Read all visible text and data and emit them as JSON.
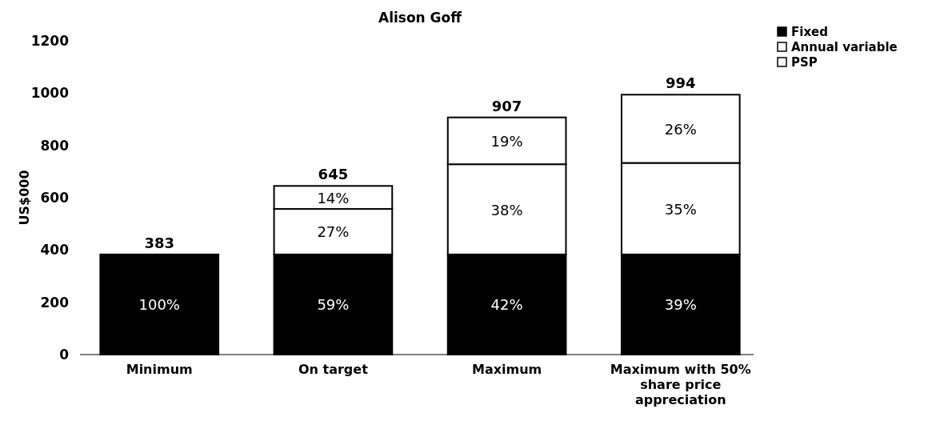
{
  "chart_data": {
    "type": "bar",
    "title": "Alison Goff",
    "ylabel": "US$000",
    "stacked": true,
    "categories": [
      "Minimum",
      "On target",
      "Maximum",
      "Maximum with 50% share price appreciation"
    ],
    "series": [
      {
        "name": "Fixed",
        "color": "#000000",
        "values": [
          383,
          383,
          383,
          383
        ]
      },
      {
        "name": "Annual variable",
        "color": "#ffffff",
        "values": [
          null,
          174,
          345,
          350
        ]
      },
      {
        "name": "PSP",
        "color": "#ffffff",
        "values": [
          null,
          88,
          179,
          261
        ]
      }
    ],
    "annotations": [
      "100%",
      "59%",
      "42%",
      "39%",
      "27%",
      "38%",
      "35%",
      "14%",
      "19%",
      "26%"
    ],
    "totals": [
      "383",
      "645",
      "907",
      "994"
    ],
    "ylim": [
      0,
      1200
    ],
    "yticks": [
      0,
      200,
      400,
      600,
      800,
      1000,
      1200
    ],
    "grid": false,
    "legend": "top right"
  }
}
